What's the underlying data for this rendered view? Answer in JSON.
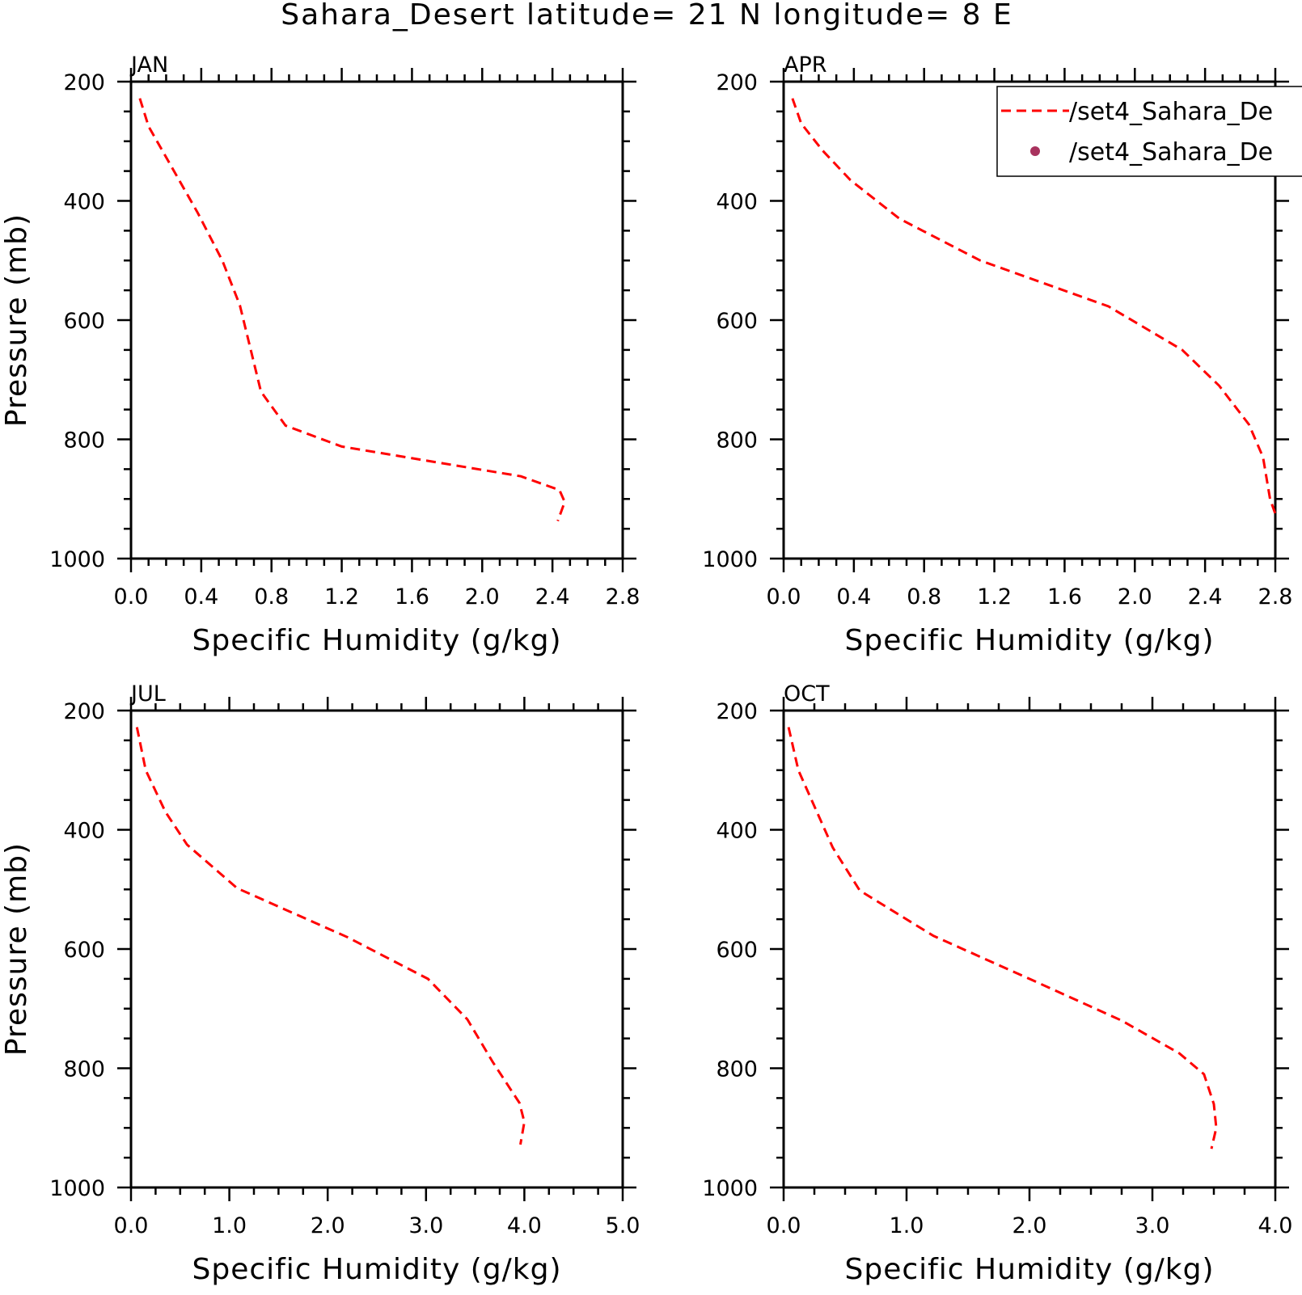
{
  "figure": {
    "title": "Sahara_Desert  latitude= 21 N longitude= 8 E"
  },
  "legend": {
    "entries": [
      {
        "label": "/set4_Sahara_De",
        "style": "dashed-line",
        "color": "#ff0000"
      },
      {
        "label": "/set4_Sahara_De",
        "style": "dot",
        "color": "#a8325e"
      }
    ]
  },
  "chart_data": [
    {
      "type": "line",
      "panel_label": "JAN",
      "xlabel": "Specific Humidity (g/kg)",
      "ylabel": "Pressure (mb)",
      "xlim": [
        0.0,
        2.8
      ],
      "ylim": [
        200,
        1000
      ],
      "y_inverted": true,
      "x_ticks": [
        "0.0",
        "0.4",
        "0.8",
        "1.2",
        "1.6",
        "2.0",
        "2.4",
        "2.8"
      ],
      "y_ticks": [
        "200",
        "400",
        "600",
        "800",
        "1000"
      ],
      "series": [
        {
          "color": "#ff0000",
          "style": "dashed",
          "x": [
            0.05,
            0.1,
            0.38,
            0.52,
            0.62,
            0.74,
            0.88,
            1.2,
            2.22,
            2.44,
            2.47,
            2.43
          ],
          "y": [
            228,
            275,
            420,
            500,
            575,
            720,
            777,
            812,
            862,
            885,
            905,
            937
          ]
        }
      ]
    },
    {
      "type": "line",
      "panel_label": "APR",
      "xlabel": "Specific Humidity (g/kg)",
      "ylabel": "",
      "xlim": [
        0.0,
        2.8
      ],
      "ylim": [
        200,
        1000
      ],
      "y_inverted": true,
      "x_ticks": [
        "0.0",
        "0.4",
        "0.8",
        "1.2",
        "1.6",
        "2.0",
        "2.4",
        "2.8"
      ],
      "y_ticks": [
        "200",
        "400",
        "600",
        "800",
        "1000"
      ],
      "series": [
        {
          "color": "#ff0000",
          "style": "dashed",
          "x": [
            0.05,
            0.1,
            0.22,
            0.38,
            0.66,
            1.12,
            1.85,
            2.27,
            2.48,
            2.65,
            2.73,
            2.77,
            2.8
          ],
          "y": [
            228,
            270,
            315,
            365,
            430,
            500,
            577,
            650,
            710,
            775,
            830,
            900,
            925
          ]
        }
      ]
    },
    {
      "type": "line",
      "panel_label": "JUL",
      "xlabel": "Specific Humidity (g/kg)",
      "ylabel": "Pressure (mb)",
      "xlim": [
        0.0,
        5.0
      ],
      "ylim": [
        200,
        1000
      ],
      "y_inverted": true,
      "x_ticks": [
        "0.0",
        "1.0",
        "2.0",
        "3.0",
        "4.0",
        "5.0"
      ],
      "y_ticks": [
        "200",
        "400",
        "600",
        "800",
        "1000"
      ],
      "series": [
        {
          "color": "#ff0000",
          "style": "dashed",
          "x": [
            0.06,
            0.15,
            0.35,
            0.57,
            1.08,
            2.2,
            3.02,
            3.42,
            3.68,
            3.95,
            4.0,
            3.96
          ],
          "y": [
            228,
            300,
            370,
            425,
            498,
            580,
            650,
            718,
            790,
            858,
            890,
            928
          ]
        }
      ]
    },
    {
      "type": "line",
      "panel_label": "OCT",
      "xlabel": "Specific Humidity (g/kg)",
      "ylabel": "",
      "xlim": [
        0.0,
        4.0
      ],
      "ylim": [
        200,
        1000
      ],
      "y_inverted": true,
      "x_ticks": [
        "0.0",
        "1.0",
        "2.0",
        "3.0",
        "4.0"
      ],
      "y_ticks": [
        "200",
        "400",
        "600",
        "800",
        "1000"
      ],
      "series": [
        {
          "color": "#ff0000",
          "style": "dashed",
          "x": [
            0.04,
            0.12,
            0.4,
            0.62,
            1.22,
            2.0,
            2.75,
            3.22,
            3.42,
            3.5,
            3.52,
            3.48
          ],
          "y": [
            228,
            300,
            430,
            502,
            578,
            650,
            720,
            775,
            810,
            860,
            900,
            935
          ]
        }
      ]
    }
  ]
}
